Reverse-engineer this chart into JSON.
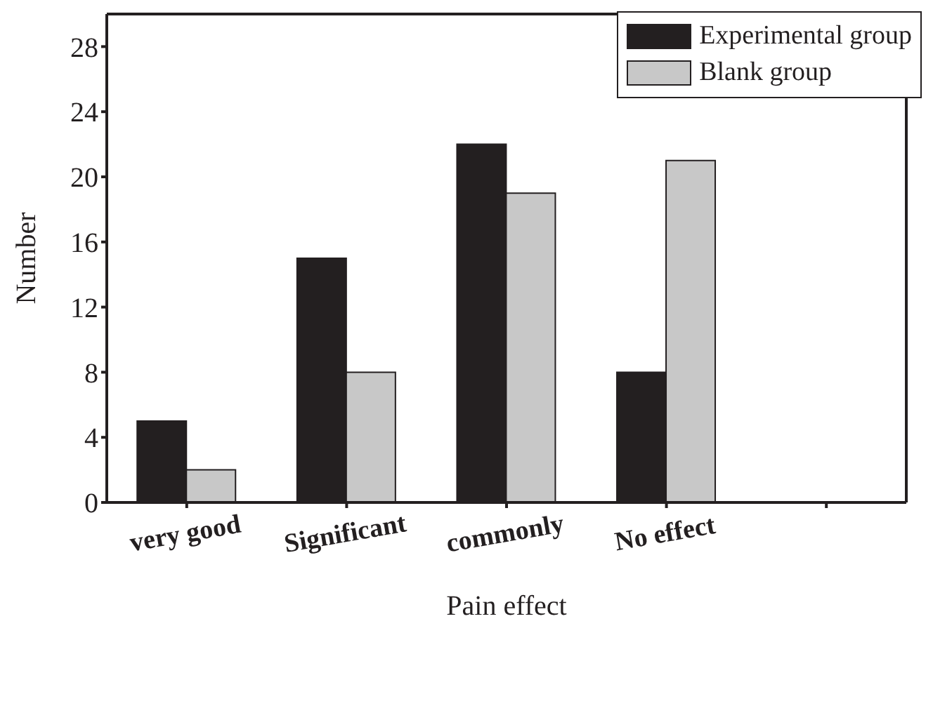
{
  "chart_data": {
    "type": "bar",
    "xlabel": "Pain effect",
    "ylabel": "Number",
    "categories": [
      "very good",
      "Significant",
      "commonly",
      "No effect",
      null
    ],
    "series": [
      {
        "name": "Experimental group",
        "color": "#231f20",
        "values": [
          5,
          15,
          22,
          8,
          null
        ]
      },
      {
        "name": "Blank group",
        "color": "#c8c8c8",
        "values": [
          2,
          8,
          19,
          21,
          null
        ]
      }
    ],
    "ylim": [
      0,
      30
    ],
    "yticks": [
      0,
      4,
      8,
      12,
      16,
      20,
      24,
      28
    ],
    "grid": false,
    "legend": "top right"
  }
}
